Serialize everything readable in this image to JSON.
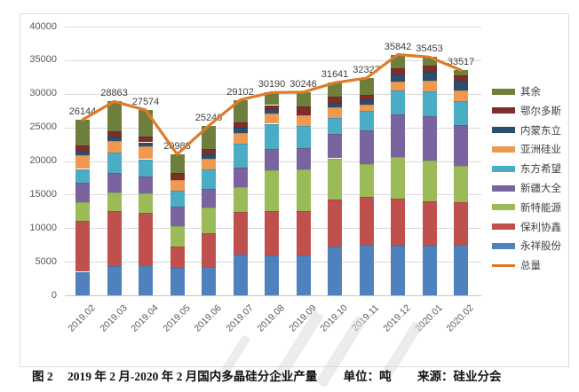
{
  "caption": {
    "figure_label": "图 2",
    "title": "2019 年 2 月-2020 年 2 月国内多晶硅分企业产量",
    "unit": "单位：吨",
    "source": "来源：硅业分会"
  },
  "chart_data": {
    "type": "bar",
    "subtype": "stacked-column-with-total-line",
    "title": "",
    "xlabel": "",
    "ylabel": "",
    "ylim": [
      0,
      40000
    ],
    "y_tick_step": 5000,
    "y_ticks": [
      "0",
      "5000",
      "10000",
      "15000",
      "20000",
      "25000",
      "30000",
      "35000",
      "40000"
    ],
    "grid": true,
    "legend_position": "right",
    "legend_order": "top-of-stack-first-then-line",
    "categories": [
      "2019.02",
      "2019.03",
      "2019.04",
      "2019.05",
      "2019.06",
      "2019.07",
      "2019.08",
      "2019.09",
      "2019.10",
      "2019.11",
      "2019.12",
      "2020.01",
      "2020.02"
    ],
    "series": [
      {
        "name": "永祥股份",
        "color": "#4f81bd",
        "values": [
          3500,
          4300,
          4530,
          4100,
          4200,
          6100,
          5950,
          5950,
          7300,
          7530,
          7440,
          7440,
          7530
        ]
      },
      {
        "name": "保利协鑫",
        "color": "#c0504d",
        "values": [
          7640,
          8200,
          7735,
          3110,
          5020,
          6260,
          6540,
          6540,
          6930,
          7150,
          6970,
          6610,
          6305
        ]
      },
      {
        "name": "新特能源",
        "color": "#9bbb59",
        "values": [
          2760,
          2850,
          2900,
          3040,
          3820,
          3790,
          6120,
          6210,
          6170,
          4825,
          6215,
          6040,
          5445
        ]
      },
      {
        "name": "新疆大全",
        "color": "#7a639e",
        "values": [
          2900,
          2900,
          2550,
          3000,
          2770,
          2915,
          3130,
          3180,
          3570,
          5055,
          6260,
          6570,
          6125
        ]
      },
      {
        "name": "东方希望",
        "color": "#4bacc6",
        "values": [
          2010,
          3030,
          2550,
          2370,
          2950,
          3485,
          3800,
          3350,
          2450,
          2895,
          3575,
          3710,
          3485
        ]
      },
      {
        "name": "亚洲硅业",
        "color": "#ef9850",
        "values": [
          2010,
          1660,
          1920,
          1510,
          1560,
          1645,
          1470,
          1510,
          1570,
          990,
          1340,
          1560,
          1570
        ]
      },
      {
        "name": "内蒙东立",
        "color": "#2a4e6e",
        "values": [
          580,
          710,
          580,
          0,
          670,
          765,
          765,
          0,
          670,
          575,
          1020,
          1340,
          1470
        ]
      },
      {
        "name": "鄂尔多斯",
        "color": "#7e2d2a",
        "values": [
          860,
          760,
          900,
          1030,
          850,
          805,
          535,
          1390,
          900,
          850,
          990,
          890,
          760
        ]
      },
      {
        "name": "其余",
        "color": "#6e7e3d",
        "values": [
          3884,
          4453,
          3909,
          2828,
          3406,
          3337,
          1880,
          2116,
          2081,
          2457,
          2032,
          1293,
          827
        ]
      }
    ],
    "line_series": {
      "name": "总量",
      "color": "#dd7b2a",
      "values": [
        26144,
        28863,
        27574,
        20988,
        25246,
        29102,
        30190,
        30246,
        31641,
        32327,
        35842,
        35453,
        33517
      ]
    },
    "data_labels": [
      "26144",
      "28863",
      "27574",
      "20988",
      "25246",
      "29102",
      "30190",
      "30246",
      "31641",
      "32327",
      "35842",
      "35453",
      "33517"
    ]
  }
}
